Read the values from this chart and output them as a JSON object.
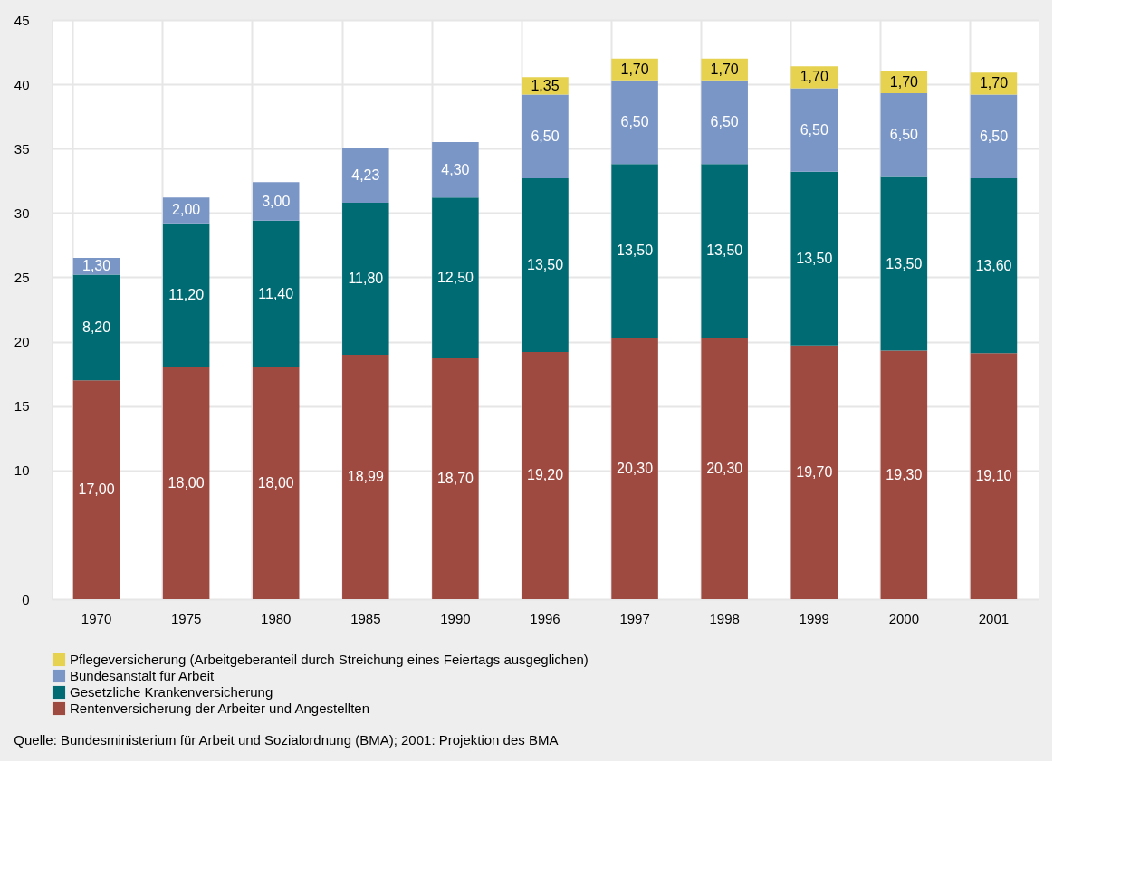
{
  "chart_data": {
    "type": "bar",
    "stacked": true,
    "categories": [
      "1970",
      "1975",
      "1980",
      "1985",
      "1990",
      "1996",
      "1997",
      "1998",
      "1999",
      "2000",
      "2001"
    ],
    "series": [
      {
        "name": "Rentenversicherung der Arbeiter und Angestellten",
        "color": "#9e4a40",
        "values": [
          17.0,
          18.0,
          18.0,
          18.99,
          18.7,
          19.2,
          20.3,
          20.3,
          19.7,
          19.3,
          19.1
        ],
        "value_labels": [
          "17,00",
          "18,00",
          "18,00",
          "18,99",
          "18,70",
          "19,20",
          "20,30",
          "20,30",
          "19,70",
          "19,30",
          "19,10"
        ]
      },
      {
        "name": "Gesetzliche Krankenversicherung",
        "color": "#006b73",
        "values": [
          8.2,
          11.2,
          11.4,
          11.8,
          12.5,
          13.5,
          13.5,
          13.5,
          13.5,
          13.5,
          13.6
        ],
        "value_labels": [
          "8,20",
          "11,20",
          "11,40",
          "11,80",
          "12,50",
          "13,50",
          "13,50",
          "13,50",
          "13,50",
          "13,50",
          "13,60"
        ]
      },
      {
        "name": "Bundesanstalt für Arbeit",
        "color": "#7a96c6",
        "values": [
          1.3,
          2.0,
          3.0,
          4.23,
          4.3,
          6.5,
          6.5,
          6.5,
          6.5,
          6.5,
          6.5
        ],
        "value_labels": [
          "1,30",
          "2,00",
          "3,00",
          "4,23",
          "4,30",
          "6,50",
          "6,50",
          "6,50",
          "6,50",
          "6,50",
          "6,50"
        ]
      },
      {
        "name": "Pflegeversicherung (Arbeitgeberanteil durch Streichung eines Feiertags ausgeglichen)",
        "color": "#e6d24f",
        "values": [
          null,
          null,
          null,
          null,
          null,
          1.35,
          1.7,
          1.7,
          1.7,
          1.7,
          1.7
        ],
        "value_labels": [
          null,
          null,
          null,
          null,
          null,
          "1,35",
          "1,70",
          "1,70",
          "1,70",
          "1,70",
          "1,70"
        ]
      }
    ],
    "ylim": [
      0,
      45
    ],
    "yticks": [
      0,
      10,
      15,
      20,
      25,
      30,
      35,
      40,
      45
    ],
    "grid": true,
    "legend": "bottom",
    "annotations": [
      "Quelle: Bundesministerium für Arbeit und Sozialordnung (BMA); 2001: Projektion des BMA"
    ]
  }
}
